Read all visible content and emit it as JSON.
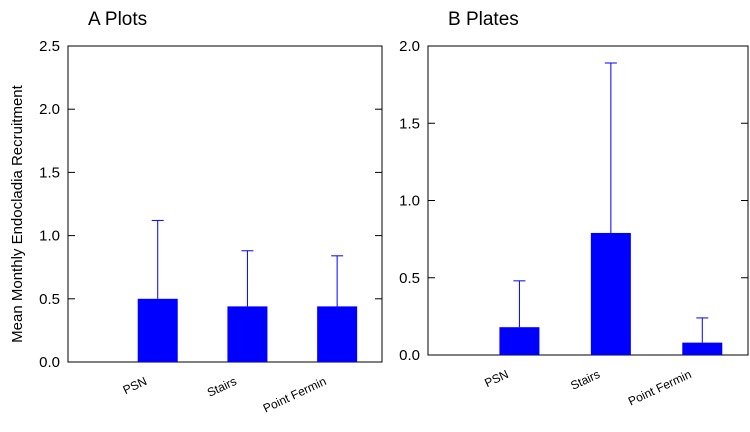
{
  "chart_data": [
    {
      "type": "bar",
      "title": "A Plots",
      "y_label": "Mean Monthly Endocladia Recruitment",
      "categories": [
        "PSN",
        "Stairs",
        "Point Fermin"
      ],
      "values": [
        0.5,
        0.44,
        0.44
      ],
      "errors": [
        0.62,
        0.44,
        0.4
      ],
      "color": "#0000ff",
      "ylim": [
        0,
        2.5
      ],
      "yticks": [
        {
          "value": 0,
          "label": "0.0"
        },
        0.5,
        {
          "value": 1,
          "label": "1.0"
        },
        1.5,
        {
          "value": 2,
          "label": "2.0"
        },
        2.5
      ]
    },
    {
      "type": "bar",
      "title": "B Plates",
      "categories": [
        "PSN",
        "Stairs",
        "Point Fermin"
      ],
      "values": [
        0.18,
        0.79,
        0.08
      ],
      "errors": [
        0.3,
        1.1,
        0.16
      ],
      "color": "#0000ff",
      "ylim": [
        0,
        2
      ],
      "yticks": [
        {
          "value": 0,
          "label": "0.0"
        },
        0.5,
        {
          "value": 1,
          "label": "1.0"
        },
        1.5,
        {
          "value": 2,
          "label": "2.0"
        }
      ]
    }
  ]
}
